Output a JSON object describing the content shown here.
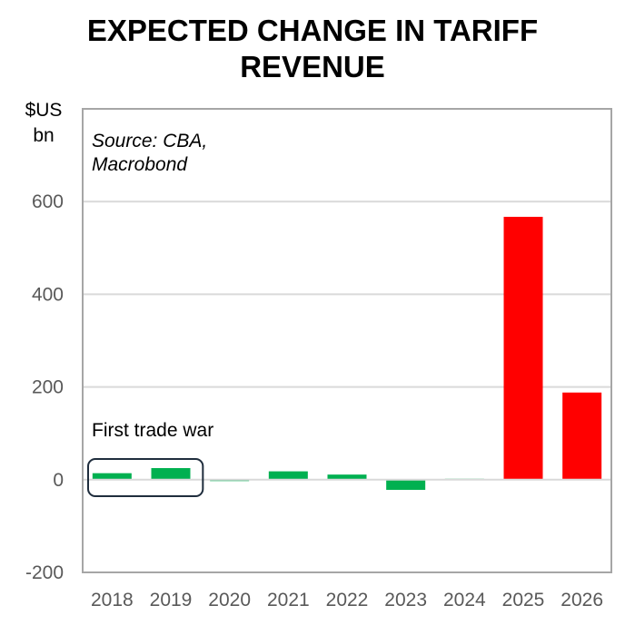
{
  "title_lines": [
    "EXPECTED CHANGE IN TARIFF",
    "REVENUE"
  ],
  "y_unit_lines": [
    "$US",
    "bn"
  ],
  "source_lines": [
    "Source: CBA,",
    "Macrobond"
  ],
  "annotation": "First trade war",
  "colors": {
    "history": "#00b050",
    "forecast": "#ff0000",
    "grid": "#d9d9d9",
    "axis": "#a6a6a6",
    "highlight_box": "#1f2d3d"
  },
  "chart_data": {
    "type": "bar",
    "title": "EXPECTED CHANGE IN TARIFF REVENUE",
    "xlabel": "",
    "ylabel": "$US bn",
    "categories": [
      "2018",
      "2019",
      "2020",
      "2021",
      "2022",
      "2023",
      "2024",
      "2025",
      "2026"
    ],
    "values": [
      14,
      25,
      -2,
      18,
      11,
      -22,
      2,
      567,
      188
    ],
    "bar_types": [
      "history",
      "history",
      "history",
      "history",
      "history",
      "history",
      "history",
      "forecast",
      "forecast"
    ],
    "ylim": [
      -200,
      800
    ],
    "yticks": [
      -200,
      0,
      200,
      400,
      600
    ],
    "ytick_labels": [
      "-200",
      "0",
      "200",
      "400",
      "600"
    ],
    "grid": true,
    "highlight_categories": [
      "2018",
      "2019"
    ]
  }
}
